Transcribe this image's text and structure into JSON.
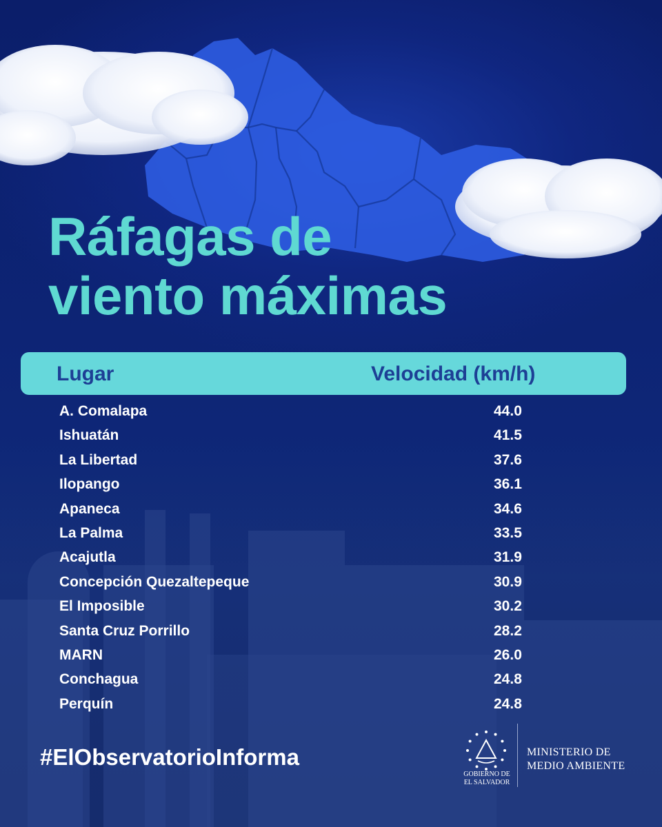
{
  "title": {
    "line1": "Ráfagas de",
    "line2": "viento máximas"
  },
  "table": {
    "headers": {
      "place": "Lugar",
      "speed": "Velocidad (km/h)"
    },
    "rows": [
      {
        "place": "A. Comalapa",
        "speed": "44.0"
      },
      {
        "place": "Ishuatán",
        "speed": "41.5"
      },
      {
        "place": "La Libertad",
        "speed": "37.6"
      },
      {
        "place": "Ilopango",
        "speed": "36.1"
      },
      {
        "place": "Apaneca",
        "speed": "34.6"
      },
      {
        "place": "La Palma",
        "speed": "33.5"
      },
      {
        "place": "Acajutla",
        "speed": "31.9"
      },
      {
        "place": "Concepción Quezaltepeque",
        "speed": "30.9"
      },
      {
        "place": "El Imposible",
        "speed": "30.2"
      },
      {
        "place": "Santa Cruz Porrillo",
        "speed": "28.2"
      },
      {
        "place": "MARN",
        "speed": "26.0"
      },
      {
        "place": "Conchagua",
        "speed": "24.8"
      },
      {
        "place": "Perquín",
        "speed": "24.8"
      }
    ]
  },
  "hashtag": "#ElObservatorioInforma",
  "footer": {
    "seal_caption_line1": "GOBIERNO DE",
    "seal_caption_line2": "EL SALVADOR",
    "ministry_line1": "MINISTERIO DE",
    "ministry_line2": "MEDIO AMBIENTE"
  },
  "colors": {
    "background": "#0c1f6e",
    "map": "#2f5fe6",
    "accent_teal": "#5fd9d2",
    "header_bar": "#66d8db",
    "header_text": "#1d3f95",
    "text": "#ffffff"
  },
  "icons": {
    "map": "el-salvador-map-graphic",
    "seal": "national-seal-icon"
  }
}
